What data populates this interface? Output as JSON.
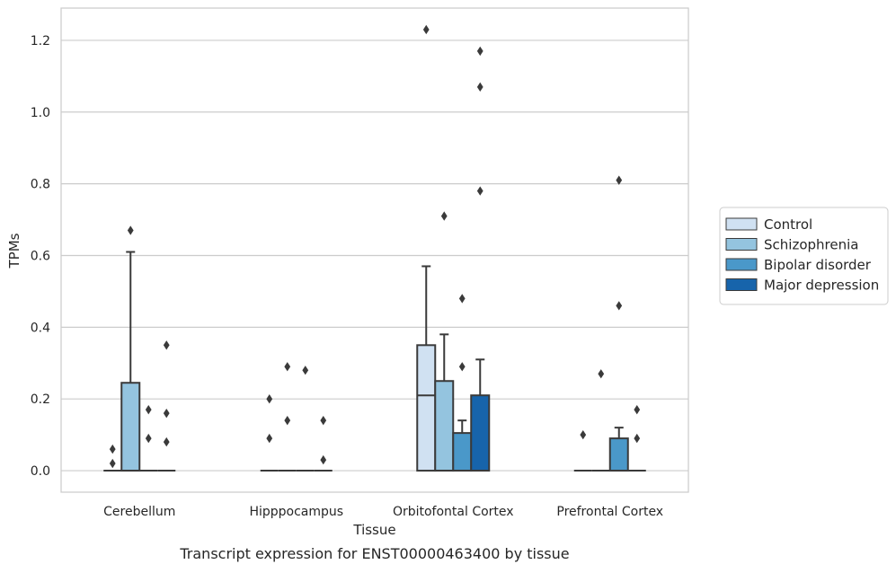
{
  "chart_data": {
    "type": "box",
    "caption": "Transcript expression for ENST00000463400 by tissue",
    "xlabel": "Tissue",
    "ylabel": "TPMs",
    "ylim": [
      -0.06,
      1.29
    ],
    "yticks": [
      0.0,
      0.2,
      0.4,
      0.6,
      0.8,
      1.0,
      1.2
    ],
    "ytick_labels": [
      "0.0",
      "0.2",
      "0.4",
      "0.6",
      "0.8",
      "1.0",
      "1.2"
    ],
    "grid": true,
    "legend_position": "right",
    "categories": [
      "Cerebellum",
      "Hipppocampus",
      "Orbitofontal Cortex",
      "Prefrontal Cortex"
    ],
    "series": [
      {
        "name": "Control",
        "color": "#d0e1f2",
        "boxes": [
          {
            "q1": 0.0,
            "median": 0.0,
            "q3": 0.0,
            "whisker_low": 0.0,
            "whisker_high": 0.0,
            "outliers": [
              0.02,
              0.06
            ]
          },
          {
            "q1": 0.0,
            "median": 0.0,
            "q3": 0.0,
            "whisker_low": 0.0,
            "whisker_high": 0.0,
            "outliers": [
              0.09,
              0.2
            ]
          },
          {
            "q1": 0.0,
            "median": 0.21,
            "q3": 0.35,
            "whisker_low": 0.0,
            "whisker_high": 0.57,
            "outliers": [
              1.23
            ]
          },
          {
            "q1": 0.0,
            "median": 0.0,
            "q3": 0.0,
            "whisker_low": 0.0,
            "whisker_high": 0.0,
            "outliers": [
              0.1
            ]
          }
        ]
      },
      {
        "name": "Schizophrenia",
        "color": "#94c4df",
        "boxes": [
          {
            "q1": 0.0,
            "median": 0.0,
            "q3": 0.245,
            "whisker_low": 0.0,
            "whisker_high": 0.61,
            "outliers": [
              0.67
            ]
          },
          {
            "q1": 0.0,
            "median": 0.0,
            "q3": 0.0,
            "whisker_low": 0.0,
            "whisker_high": 0.0,
            "outliers": [
              0.14,
              0.29
            ]
          },
          {
            "q1": 0.0,
            "median": 0.0,
            "q3": 0.25,
            "whisker_low": 0.0,
            "whisker_high": 0.38,
            "outliers": [
              0.71
            ]
          },
          {
            "q1": 0.0,
            "median": 0.0,
            "q3": 0.0,
            "whisker_low": 0.0,
            "whisker_high": 0.0,
            "outliers": [
              0.27
            ]
          }
        ]
      },
      {
        "name": "Bipolar disorder",
        "color": "#4a98c9",
        "boxes": [
          {
            "q1": 0.0,
            "median": 0.0,
            "q3": 0.0,
            "whisker_low": 0.0,
            "whisker_high": 0.0,
            "outliers": [
              0.09,
              0.17
            ]
          },
          {
            "q1": 0.0,
            "median": 0.0,
            "q3": 0.0,
            "whisker_low": 0.0,
            "whisker_high": 0.0,
            "outliers": [
              0.28
            ]
          },
          {
            "q1": 0.0,
            "median": 0.0,
            "q3": 0.105,
            "whisker_low": 0.0,
            "whisker_high": 0.14,
            "outliers": [
              0.29,
              0.48
            ]
          },
          {
            "q1": 0.0,
            "median": 0.0,
            "q3": 0.09,
            "whisker_low": 0.0,
            "whisker_high": 0.12,
            "outliers": [
              0.46,
              0.81
            ]
          }
        ]
      },
      {
        "name": "Major depression",
        "color": "#1764ab",
        "boxes": [
          {
            "q1": 0.0,
            "median": 0.0,
            "q3": 0.0,
            "whisker_low": 0.0,
            "whisker_high": 0.0,
            "outliers": [
              0.08,
              0.16,
              0.35
            ]
          },
          {
            "q1": 0.0,
            "median": 0.0,
            "q3": 0.0,
            "whisker_low": 0.0,
            "whisker_high": 0.0,
            "outliers": [
              0.03,
              0.14
            ]
          },
          {
            "q1": 0.0,
            "median": 0.0,
            "q3": 0.21,
            "whisker_low": 0.0,
            "whisker_high": 0.31,
            "outliers": [
              0.78,
              1.07,
              1.17
            ]
          },
          {
            "q1": 0.0,
            "median": 0.0,
            "q3": 0.0,
            "whisker_low": 0.0,
            "whisker_high": 0.0,
            "outliers": [
              0.09,
              0.17
            ]
          }
        ]
      }
    ]
  }
}
